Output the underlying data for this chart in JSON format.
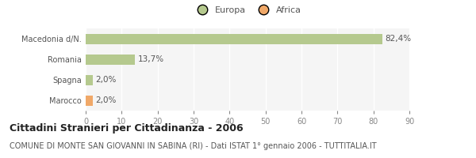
{
  "categories": [
    "Marocco",
    "Spagna",
    "Romania",
    "Macedonia d/N."
  ],
  "values": [
    2.0,
    2.0,
    13.7,
    82.4
  ],
  "bar_colors": [
    "#f0a868",
    "#b5c98e",
    "#b5c98e",
    "#b5c98e"
  ],
  "value_labels": [
    "2,0%",
    "2,0%",
    "13,7%",
    "82,4%"
  ],
  "legend": [
    {
      "label": "Europa",
      "color": "#b5c98e"
    },
    {
      "label": "Africa",
      "color": "#f0a868"
    }
  ],
  "xlim": [
    0,
    90
  ],
  "xticks": [
    0,
    10,
    20,
    30,
    40,
    50,
    60,
    70,
    80,
    90
  ],
  "title": "Cittadini Stranieri per Cittadinanza - 2006",
  "subtitle": "COMUNE DI MONTE SAN GIOVANNI IN SABINA (RI) - Dati ISTAT 1° gennaio 2006 - TUTTITALIA.IT",
  "bg_color": "#ffffff",
  "plot_bg_color": "#f5f5f5",
  "grid_color": "#ffffff",
  "bar_height": 0.5,
  "title_fontsize": 9,
  "subtitle_fontsize": 7,
  "label_fontsize": 7.5,
  "tick_fontsize": 7,
  "legend_fontsize": 8
}
